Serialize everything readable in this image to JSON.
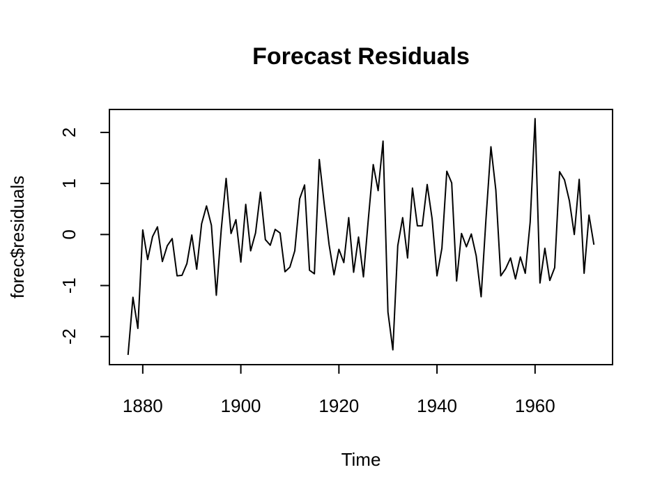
{
  "chart_data": {
    "type": "line",
    "title": "Forecast Residuals",
    "xlabel": "Time",
    "ylabel": "forec$residuals",
    "xlim": [
      1873.2,
      1975.8
    ],
    "ylim": [
      -2.55,
      2.45
    ],
    "x_ticks": [
      1880,
      1900,
      1920,
      1940,
      1960
    ],
    "y_ticks": [
      -2,
      -1,
      0,
      1,
      2
    ],
    "x_tick_labels": [
      "1880",
      "1900",
      "1920",
      "1940",
      "1960"
    ],
    "y_tick_labels": [
      "-2",
      "-1",
      "0",
      "1",
      "2"
    ],
    "grid": false,
    "series": [
      {
        "name": "forec$residuals",
        "x_start": 1877,
        "x_step": 1,
        "values": [
          -2.36,
          -1.23,
          -1.84,
          0.09,
          -0.49,
          -0.04,
          0.15,
          -0.53,
          -0.22,
          -0.08,
          -0.81,
          -0.8,
          -0.57,
          -0.01,
          -0.68,
          0.21,
          0.56,
          0.18,
          -1.19,
          0.09,
          1.1,
          0.02,
          0.29,
          -0.54,
          0.59,
          -0.32,
          0.03,
          0.83,
          -0.1,
          -0.21,
          0.1,
          0.03,
          -0.73,
          -0.64,
          -0.32,
          0.7,
          0.97,
          -0.7,
          -0.77,
          1.47,
          0.6,
          -0.2,
          -0.79,
          -0.29,
          -0.55,
          0.33,
          -0.74,
          -0.05,
          -0.83,
          0.3,
          1.37,
          0.86,
          1.83,
          -1.52,
          -2.26,
          -0.22,
          0.33,
          -0.46,
          0.91,
          0.17,
          0.17,
          0.98,
          0.31,
          -0.81,
          -0.27,
          1.24,
          1.01,
          -0.91,
          0.02,
          -0.24,
          0.01,
          -0.42,
          -1.22,
          0.32,
          1.72,
          0.87,
          -0.81,
          -0.67,
          -0.46,
          -0.87,
          -0.44,
          -0.76,
          0.24,
          2.27,
          -0.95,
          -0.27,
          -0.9,
          -0.65,
          1.23,
          1.07,
          0.66,
          0.0,
          1.08,
          -0.76,
          0.38,
          -0.2
        ]
      }
    ]
  }
}
